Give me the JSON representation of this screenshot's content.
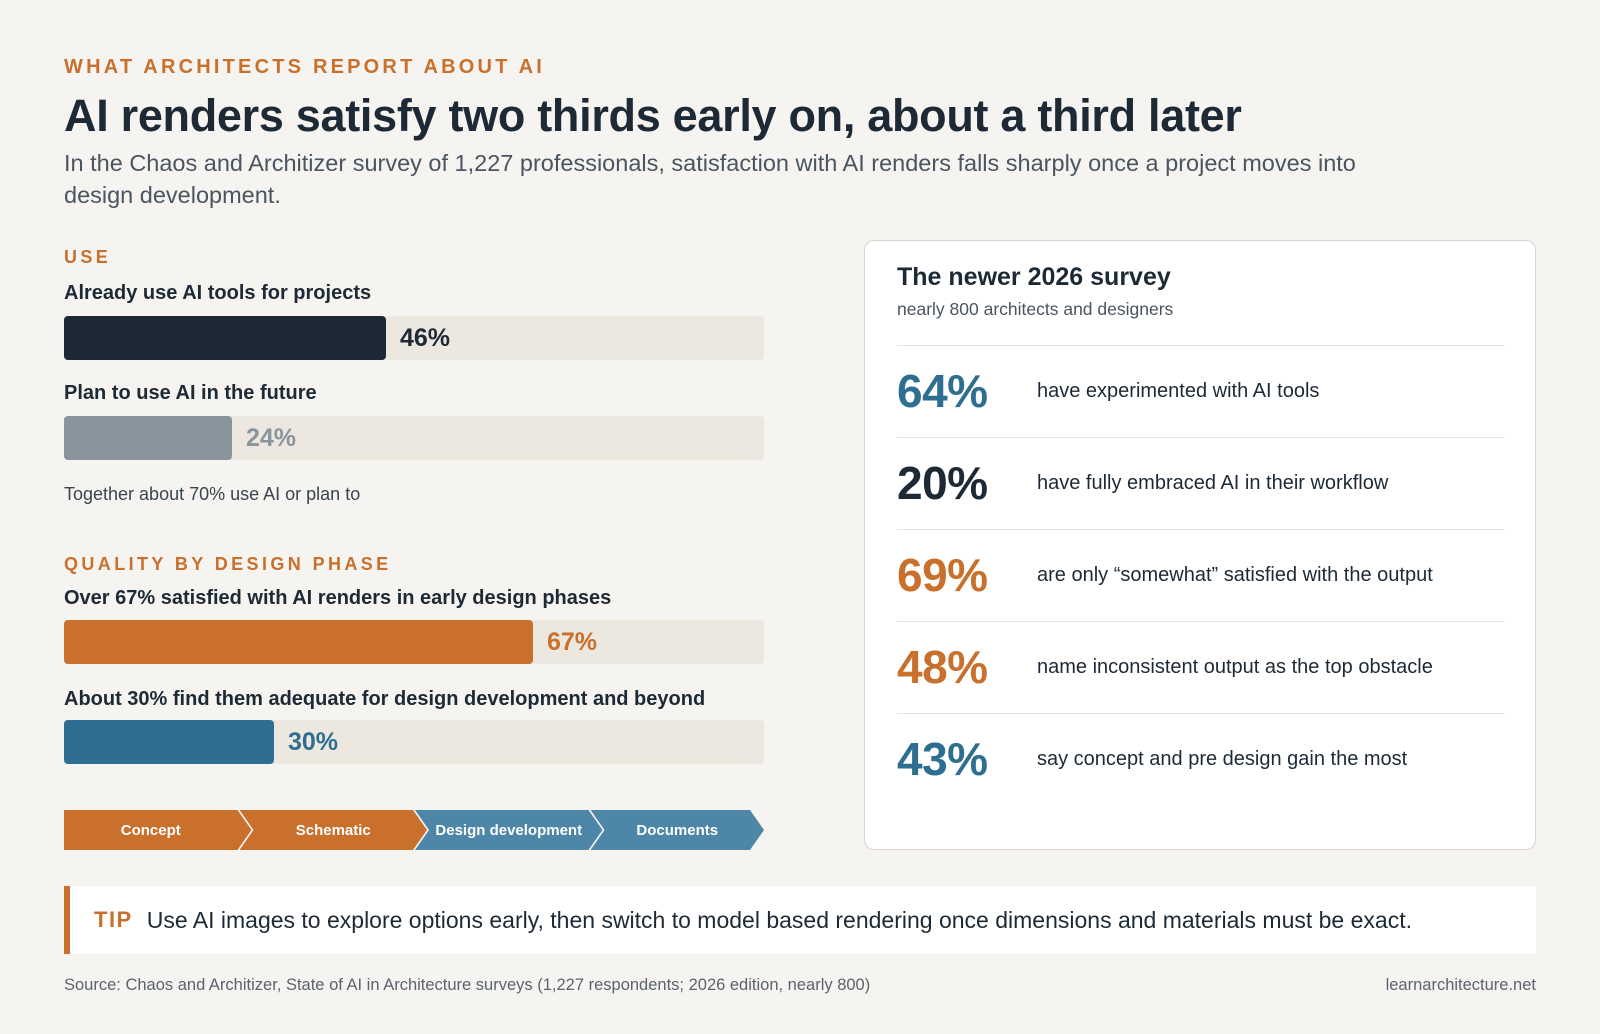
{
  "eyebrow": "WHAT ARCHITECTS REPORT ABOUT AI",
  "title": "AI renders satisfy two thirds early on, about a third later",
  "subtitle": "In the Chaos and Architizer survey of 1,227 professionals, satisfaction with AI renders falls sharply once a project moves into design development.",
  "colors": {
    "orange": "#c8702c",
    "navy": "#1d2a36",
    "gray": "#8a949c",
    "blue": "#2e6e90",
    "track": "#ece8e0",
    "phase_blue": "#4d86a6"
  },
  "chart_data": [
    {
      "type": "bar",
      "section": "USE",
      "categories": [
        "Already use AI tools for projects",
        "Plan to use AI in the future"
      ],
      "values": [
        46,
        24
      ],
      "value_labels": [
        "46%",
        "24%"
      ],
      "ylim": [
        0,
        100
      ],
      "note": "Together about 70% use AI or plan to"
    },
    {
      "type": "bar",
      "section": "QUALITY BY DESIGN PHASE",
      "categories": [
        "Over 67% satisfied with AI renders in early design phases",
        "About 30% find them adequate for design development and beyond"
      ],
      "values": [
        67,
        30
      ],
      "value_labels": [
        "67%",
        "30%"
      ],
      "ylim": [
        0,
        100
      ],
      "phases": [
        "Concept",
        "Schematic",
        "Design development",
        "Documents"
      ]
    }
  ],
  "card": {
    "title": "The newer 2026 survey",
    "subtitle": "nearly 800 architects and designers",
    "stats": [
      {
        "value": "64%",
        "text": "have experimented with AI tools",
        "color": "#2e6e90"
      },
      {
        "value": "20%",
        "text": "have fully embraced AI in their workflow",
        "color": "#1d2a36"
      },
      {
        "value": "69%",
        "text": "are only “somewhat” satisfied with the output",
        "color": "#c8702c"
      },
      {
        "value": "48%",
        "text": "name inconsistent output as the top obstacle",
        "color": "#c8702c"
      },
      {
        "value": "43%",
        "text": "say concept and pre design gain the most",
        "color": "#2e6e90"
      }
    ]
  },
  "tip": {
    "label": "TIP",
    "text": "Use AI images to explore options early, then switch to model based rendering once dimensions and materials must be exact."
  },
  "footer": {
    "source": "Source: Chaos and Architizer, State of AI in Architecture surveys (1,227 respondents; 2026 edition, nearly 800)",
    "site": "learnarchitecture.net"
  }
}
